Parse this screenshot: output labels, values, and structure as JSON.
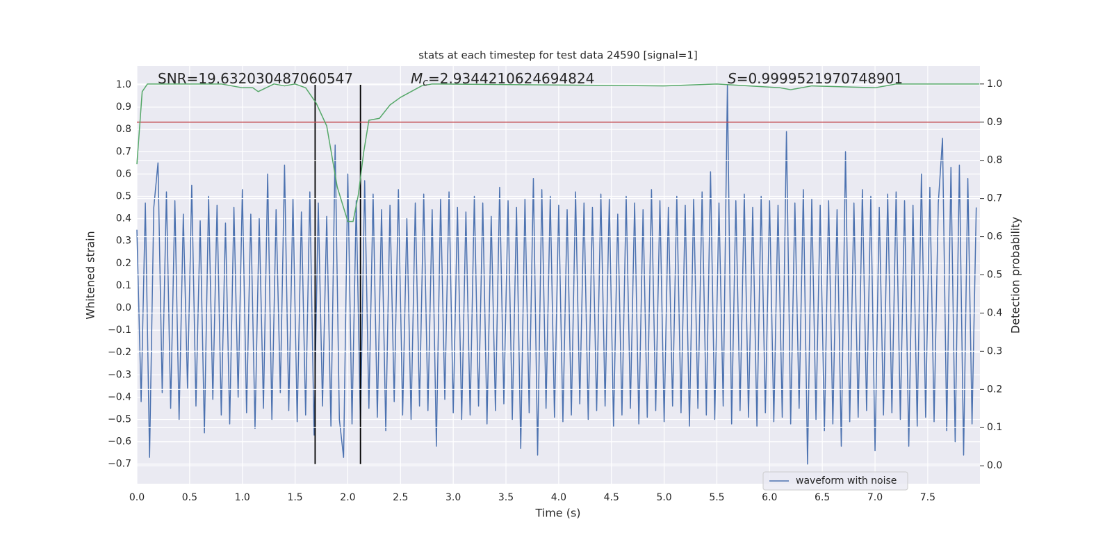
{
  "chart_data": {
    "type": "line",
    "title": "stats at each timestep for test data 24590 [signal=1]",
    "x_label": "Time (s)",
    "y_label": "Whitened strain",
    "y2_label": "Detection probability",
    "xlim": [
      0,
      7.995
    ],
    "ylim": [
      -0.788,
      1.084
    ],
    "y2lim": [
      -0.047,
      1.047
    ],
    "xticks": [
      {
        "value": 0,
        "label": "0.0"
      },
      {
        "value": 0.5,
        "label": "0.5"
      },
      {
        "value": 1,
        "label": "1.0"
      },
      {
        "value": 1.5,
        "label": "1.5"
      },
      {
        "value": 2,
        "label": "2.0"
      },
      {
        "value": 2.5,
        "label": "2.5"
      },
      {
        "value": 3,
        "label": "3.0"
      },
      {
        "value": 3.5,
        "label": "3.5"
      },
      {
        "value": 4,
        "label": "4.0"
      },
      {
        "value": 4.5,
        "label": "4.5"
      },
      {
        "value": 5,
        "label": "5.0"
      },
      {
        "value": 5.5,
        "label": "5.5"
      },
      {
        "value": 6,
        "label": "6.0"
      },
      {
        "value": 6.5,
        "label": "6.5"
      },
      {
        "value": 7,
        "label": "7.0"
      },
      {
        "value": 7.5,
        "label": "7.5"
      }
    ],
    "yticks": [
      {
        "value": -0.7,
        "label": "−0.7"
      },
      {
        "value": -0.6,
        "label": "−0.6"
      },
      {
        "value": -0.5,
        "label": "−0.5"
      },
      {
        "value": -0.4,
        "label": "−0.4"
      },
      {
        "value": -0.3,
        "label": "−0.3"
      },
      {
        "value": -0.2,
        "label": "−0.2"
      },
      {
        "value": -0.1,
        "label": "−0.1"
      },
      {
        "value": 0,
        "label": "0.0"
      },
      {
        "value": 0.1,
        "label": "0.1"
      },
      {
        "value": 0.2,
        "label": "0.2"
      },
      {
        "value": 0.3,
        "label": "0.3"
      },
      {
        "value": 0.4,
        "label": "0.4"
      },
      {
        "value": 0.5,
        "label": "0.5"
      },
      {
        "value": 0.6,
        "label": "0.6"
      },
      {
        "value": 0.7,
        "label": "0.7"
      },
      {
        "value": 0.8,
        "label": "0.8"
      },
      {
        "value": 0.9,
        "label": "0.9"
      },
      {
        "value": 1,
        "label": "1.0"
      }
    ],
    "y2ticks": [
      {
        "value": 0,
        "label": "0.0"
      },
      {
        "value": 0.1,
        "label": "0.1"
      },
      {
        "value": 0.2,
        "label": "0.2"
      },
      {
        "value": 0.3,
        "label": "0.3"
      },
      {
        "value": 0.4,
        "label": "0.4"
      },
      {
        "value": 0.5,
        "label": "0.5"
      },
      {
        "value": 0.6,
        "label": "0.6"
      },
      {
        "value": 0.7,
        "label": "0.7"
      },
      {
        "value": 0.8,
        "label": "0.8"
      },
      {
        "value": 0.9,
        "label": "0.9"
      },
      {
        "value": 1,
        "label": "1.0"
      }
    ],
    "grid": true,
    "legend": "lower right",
    "series": [
      {
        "name": "waveform with noise",
        "color": "#4c72b0",
        "x": [
          0,
          0.04,
          0.08,
          0.12,
          0.16,
          0.2,
          0.24,
          0.28,
          0.32,
          0.36,
          0.4,
          0.44,
          0.48,
          0.52,
          0.56,
          0.6,
          0.64,
          0.68,
          0.72,
          0.76,
          0.8,
          0.84,
          0.88,
          0.92,
          0.96,
          1,
          1.04,
          1.08,
          1.12,
          1.16,
          1.2,
          1.24,
          1.28,
          1.32,
          1.36,
          1.4,
          1.44,
          1.48,
          1.52,
          1.56,
          1.6,
          1.64,
          1.68,
          1.72,
          1.76,
          1.8,
          1.84,
          1.88,
          1.92,
          1.96,
          2,
          2.04,
          2.08,
          2.12,
          2.16,
          2.2,
          2.24,
          2.28,
          2.32,
          2.36,
          2.4,
          2.44,
          2.48,
          2.52,
          2.56,
          2.6,
          2.64,
          2.68,
          2.72,
          2.76,
          2.8,
          2.84,
          2.88,
          2.92,
          2.96,
          3,
          3.04,
          3.08,
          3.12,
          3.16,
          3.2,
          3.24,
          3.28,
          3.32,
          3.36,
          3.4,
          3.44,
          3.48,
          3.52,
          3.56,
          3.6,
          3.64,
          3.68,
          3.72,
          3.76,
          3.8,
          3.84,
          3.88,
          3.92,
          3.96,
          4,
          4.04,
          4.08,
          4.12,
          4.16,
          4.2,
          4.24,
          4.28,
          4.32,
          4.36,
          4.4,
          4.44,
          4.48,
          4.52,
          4.56,
          4.6,
          4.64,
          4.68,
          4.72,
          4.76,
          4.8,
          4.84,
          4.88,
          4.92,
          4.96,
          5,
          5.04,
          5.08,
          5.12,
          5.16,
          5.2,
          5.24,
          5.28,
          5.32,
          5.36,
          5.4,
          5.44,
          5.48,
          5.52,
          5.56,
          5.6,
          5.64,
          5.68,
          5.72,
          5.76,
          5.8,
          5.84,
          5.88,
          5.92,
          5.96,
          6,
          6.04,
          6.08,
          6.12,
          6.16,
          6.2,
          6.24,
          6.28,
          6.32,
          6.36,
          6.4,
          6.44,
          6.48,
          6.52,
          6.56,
          6.6,
          6.64,
          6.68,
          6.72,
          6.76,
          6.8,
          6.84,
          6.88,
          6.92,
          6.96,
          7,
          7.04,
          7.08,
          7.12,
          7.16,
          7.2,
          7.24,
          7.28,
          7.32,
          7.36,
          7.4,
          7.44,
          7.48,
          7.52,
          7.56,
          7.6,
          7.64,
          7.68,
          7.72,
          7.76,
          7.8,
          7.84,
          7.88,
          7.92,
          7.96
        ],
        "values": [
          0.35,
          -0.42,
          0.47,
          -0.67,
          0.45,
          0.65,
          -0.38,
          0.52,
          -0.45,
          0.48,
          -0.5,
          0.42,
          -0.36,
          0.55,
          -0.44,
          0.39,
          -0.56,
          0.5,
          -0.41,
          0.46,
          -0.48,
          0.38,
          -0.52,
          0.45,
          -0.4,
          0.53,
          -0.47,
          0.42,
          -0.54,
          0.4,
          -0.45,
          0.6,
          -0.5,
          0.44,
          -0.38,
          0.64,
          -0.46,
          0.49,
          -0.51,
          0.43,
          -0.48,
          0.52,
          -0.57,
          0.47,
          -0.44,
          0.41,
          -0.53,
          0.73,
          -0.5,
          -0.67,
          0.6,
          -0.52,
          0.48,
          -0.53,
          0.57,
          -0.45,
          0.51,
          -0.49,
          0.44,
          -0.55,
          0.46,
          -0.42,
          0.53,
          -0.48,
          0.4,
          -0.5,
          0.47,
          -0.44,
          0.51,
          -0.46,
          0.44,
          -0.62,
          0.49,
          -0.41,
          0.52,
          -0.47,
          0.45,
          -0.5,
          0.43,
          -0.48,
          0.5,
          -0.44,
          0.47,
          -0.52,
          0.41,
          -0.46,
          0.54,
          -0.43,
          0.48,
          -0.5,
          0.45,
          -0.63,
          0.49,
          -0.47,
          0.58,
          -0.66,
          0.53,
          -0.45,
          0.5,
          -0.49,
          0.46,
          -0.51,
          0.44,
          -0.48,
          0.52,
          -0.43,
          0.47,
          -0.5,
          0.45,
          -0.46,
          0.51,
          -0.44,
          0.49,
          -0.53,
          0.42,
          -0.48,
          0.5,
          -0.45,
          0.47,
          -0.52,
          0.44,
          -0.49,
          0.53,
          -0.46,
          0.48,
          -0.51,
          0.45,
          -0.44,
          0.5,
          -0.47,
          0.46,
          -0.53,
          0.49,
          -0.45,
          0.52,
          -0.48,
          0.61,
          -0.5,
          0.47,
          -0.44,
          1.0,
          -0.52,
          0.48,
          -0.46,
          0.51,
          -0.49,
          0.45,
          -0.53,
          0.5,
          -0.47,
          0.48,
          -0.51,
          0.46,
          -0.49,
          0.79,
          -0.52,
          0.47,
          -0.45,
          0.53,
          -0.7,
          0.49,
          -0.5,
          0.46,
          -0.55,
          0.48,
          -0.52,
          0.44,
          -0.62,
          0.7,
          -0.51,
          0.47,
          -0.49,
          0.53,
          -0.46,
          0.5,
          -0.64,
          0.45,
          -0.48,
          0.51,
          -0.47,
          0.52,
          -0.5,
          0.48,
          -0.62,
          0.46,
          -0.53,
          0.6,
          -0.49,
          0.54,
          -0.51,
          0.47,
          0.76,
          -0.55,
          0.63,
          -0.6,
          0.64,
          -0.66,
          0.58,
          -0.52,
          0.45
        ]
      },
      {
        "color": "#55a868",
        "axis": "y2",
        "x": [
          0,
          0.05,
          0.1,
          0.5,
          0.8,
          1,
          1.1,
          1.15,
          1.3,
          1.4,
          1.5,
          1.6,
          1.7,
          1.8,
          1.9,
          2,
          2.05,
          2.1,
          2.15,
          2.2,
          2.3,
          2.4,
          2.5,
          2.6,
          2.7,
          2.8,
          5,
          5.5,
          6.1,
          6.2,
          6.4,
          7,
          7.2,
          7.5,
          7.99
        ],
        "values": [
          0.79,
          0.98,
          1.0,
          1.0,
          1.0,
          0.99,
          0.99,
          0.98,
          1.0,
          0.995,
          1.0,
          0.99,
          0.95,
          0.89,
          0.73,
          0.64,
          0.64,
          0.71,
          0.82,
          0.905,
          0.91,
          0.945,
          0.965,
          0.98,
          0.995,
          1.0,
          0.995,
          1.0,
          0.99,
          0.985,
          0.995,
          0.99,
          1.0,
          1.0,
          1.0
        ]
      }
    ],
    "threshold": {
      "value": 0.9,
      "axis": "y2",
      "color": "#c44e52"
    },
    "markers": {
      "x": [
        1.69,
        2.12
      ],
      "ymin": -0.7,
      "ymax": 1.0,
      "color": "#000000"
    },
    "annotations": [
      {
        "text": "SNR=19.632030487060547"
      },
      {
        "symbol": "M",
        "subscript": "c",
        "text": "=2.9344210624694824"
      },
      {
        "symbol": "S",
        "text": "=0.9999521970748901"
      }
    ]
  }
}
